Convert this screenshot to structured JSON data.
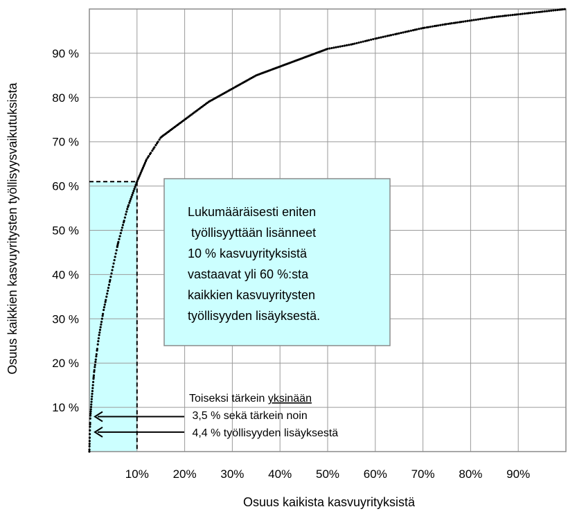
{
  "chart_data": {
    "type": "line",
    "title": "",
    "xlabel": "Osuus kaikista kasvuyrityksistä",
    "ylabel": "Osuus kaikkien kasvuyritysten työllisyysvaikutuksista",
    "xlim": [
      0,
      100
    ],
    "ylim": [
      0,
      100
    ],
    "grid": true,
    "x_ticks": [
      {
        "value": 10,
        "label": "10%"
      },
      {
        "value": 20,
        "label": "20%"
      },
      {
        "value": 30,
        "label": "30%"
      },
      {
        "value": 40,
        "label": "40%"
      },
      {
        "value": 50,
        "label": "50%"
      },
      {
        "value": 60,
        "label": "60%"
      },
      {
        "value": 70,
        "label": "70%"
      },
      {
        "value": 80,
        "label": "80%"
      },
      {
        "value": 90,
        "label": "90%"
      }
    ],
    "y_ticks": [
      {
        "value": 10,
        "label": "10 %"
      },
      {
        "value": 20,
        "label": "20 %"
      },
      {
        "value": 30,
        "label": "30 %"
      },
      {
        "value": 40,
        "label": "40 %"
      },
      {
        "value": 50,
        "label": "50 %"
      },
      {
        "value": 60,
        "label": "60 %"
      },
      {
        "value": 70,
        "label": "70 %"
      },
      {
        "value": 80,
        "label": "80 %"
      },
      {
        "value": 90,
        "label": "90 %"
      }
    ],
    "series": [
      {
        "color": "#000000",
        "points": [
          [
            0,
            0
          ],
          [
            0.1,
            4.4
          ],
          [
            0.2,
            7.9
          ],
          [
            0.5,
            12
          ],
          [
            1,
            18
          ],
          [
            2,
            26
          ],
          [
            3,
            32
          ],
          [
            4,
            37
          ],
          [
            5,
            42
          ],
          [
            6,
            47
          ],
          [
            7,
            51
          ],
          [
            8,
            55
          ],
          [
            9,
            58
          ],
          [
            10,
            61
          ],
          [
            12,
            66
          ],
          [
            15,
            71
          ],
          [
            20,
            75
          ],
          [
            25,
            79
          ],
          [
            30,
            82
          ],
          [
            35,
            85
          ],
          [
            40,
            87
          ],
          [
            45,
            89
          ],
          [
            50,
            91
          ],
          [
            55,
            92
          ],
          [
            60,
            93.3
          ],
          [
            65,
            94.5
          ],
          [
            70,
            95.7
          ],
          [
            75,
            96.6
          ],
          [
            80,
            97.4
          ],
          [
            85,
            98.2
          ],
          [
            90,
            98.8
          ],
          [
            95,
            99.4
          ],
          [
            100,
            100
          ]
        ]
      }
    ],
    "highlight_region": {
      "x": [
        0,
        10
      ],
      "y": [
        0,
        61
      ],
      "fill_color": "#ccffff",
      "border_style": "dashed"
    },
    "annotations": [
      {
        "name": "main-note",
        "lines": [
          "Lukumääräisesti eniten",
          " työllisyyttään lisänneet",
          "10 % kasvuyrityksistä",
          "vastaavat yli 60 %:sta",
          "kaikkien kasvuyritysten",
          "työllisyyden lisäyksestä."
        ],
        "fill_color": "#ccffff"
      },
      {
        "name": "second-note",
        "line1_prefix": "Toiseksi tärkein ",
        "line1_underlined": "yksinään",
        "line2": " 3,5 % sekä tärkein noin",
        "line3": " 4,4 % työllisyyden lisäyksestä",
        "arrow_targets": [
          {
            "x": 0,
            "y": 7.9
          },
          {
            "x": 0,
            "y": 4.4
          }
        ]
      }
    ]
  }
}
